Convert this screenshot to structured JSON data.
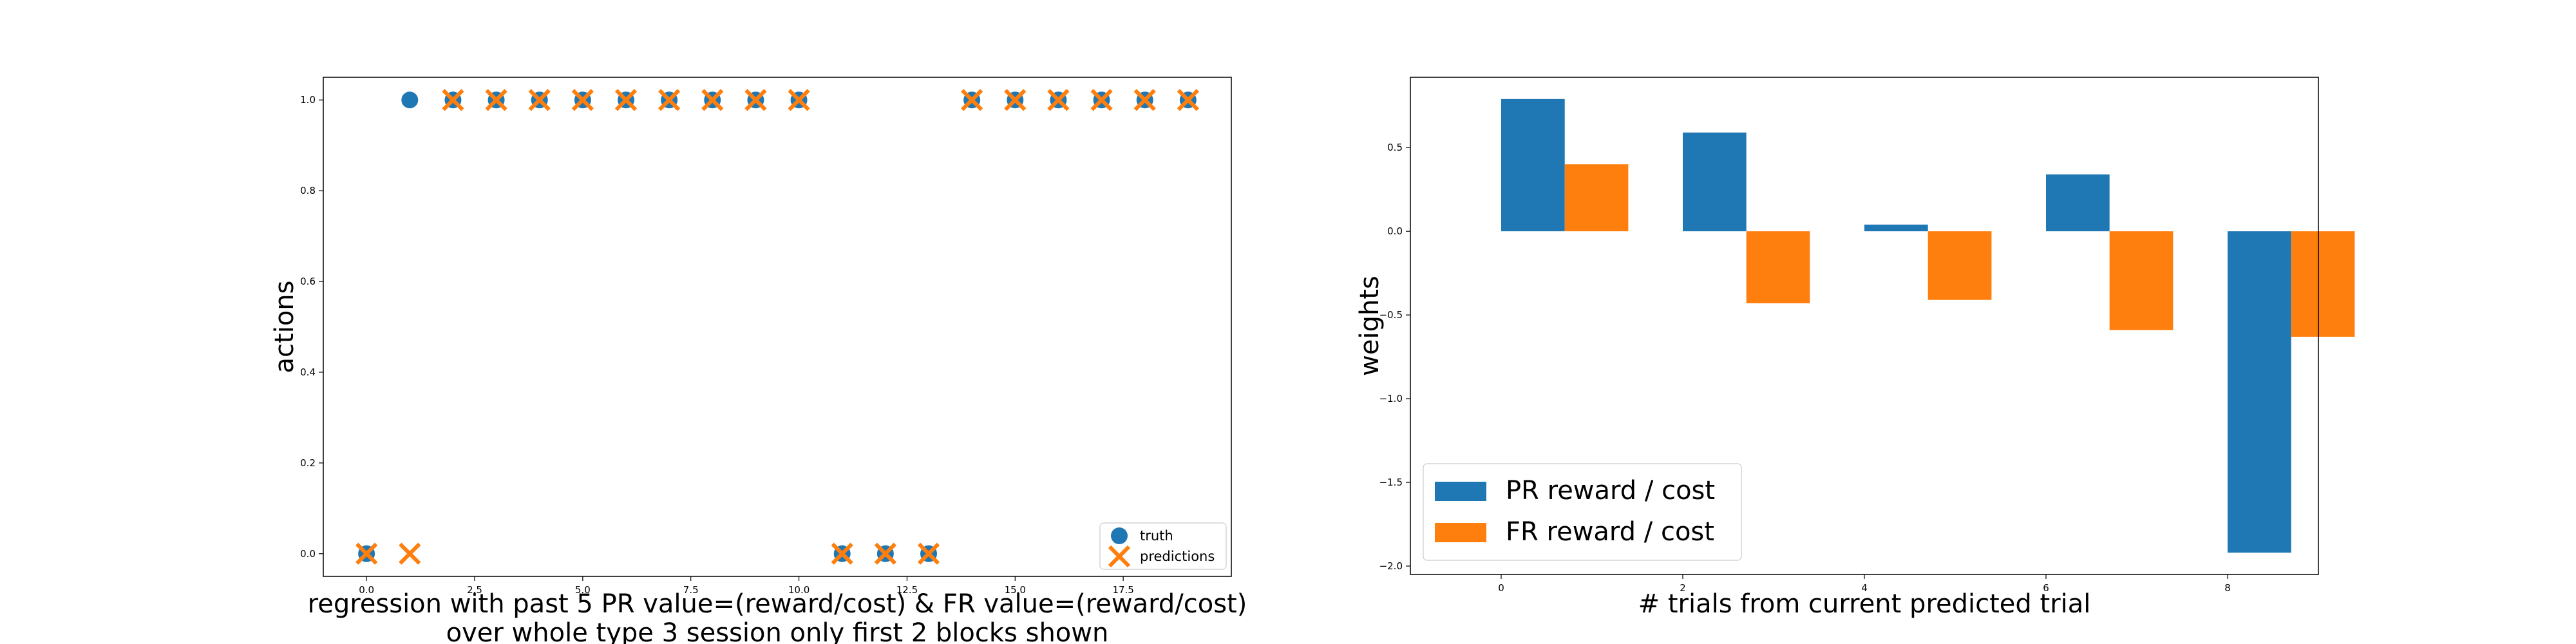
{
  "colors": {
    "blue": "#1f77b4",
    "orange": "#ff7f0e",
    "axis": "#000000",
    "background": "#ffffff"
  },
  "chart_data": [
    {
      "type": "scatter",
      "title": "",
      "xlabel": "regression with past 5 PR value=(reward/cost) & FR value=(reward/cost)",
      "xlabel_line2": "over whole type 3 session only first 2 blocks shown",
      "ylabel": "actions",
      "xlim": [
        -1.0,
        20.0
      ],
      "ylim": [
        -0.05,
        1.05
      ],
      "xticks": [
        0.0,
        2.5,
        5.0,
        7.5,
        10.0,
        12.5,
        15.0,
        17.5
      ],
      "xtick_labels": [
        "0.0",
        "2.5",
        "5.0",
        "7.5",
        "10.0",
        "12.5",
        "15.0",
        "17.5"
      ],
      "yticks": [
        0.0,
        0.2,
        0.4,
        0.6,
        0.8,
        1.0
      ],
      "ytick_labels": [
        "0.0",
        "0.2",
        "0.4",
        "0.6",
        "0.8",
        "1.0"
      ],
      "legend_position": "lower-right",
      "series": [
        {
          "name": "truth",
          "marker": "circle",
          "color": "#1f77b4",
          "x": [
            0,
            1,
            2,
            3,
            4,
            5,
            6,
            7,
            8,
            9,
            10,
            11,
            12,
            13,
            14,
            15,
            16,
            17,
            18,
            19
          ],
          "y": [
            0,
            1,
            1,
            1,
            1,
            1,
            1,
            1,
            1,
            1,
            1,
            0,
            0,
            0,
            1,
            1,
            1,
            1,
            1,
            1
          ]
        },
        {
          "name": "predictions",
          "marker": "x",
          "color": "#ff7f0e",
          "x": [
            0,
            1,
            2,
            3,
            4,
            5,
            6,
            7,
            8,
            9,
            10,
            11,
            12,
            13,
            14,
            15,
            16,
            17,
            18,
            19
          ],
          "y": [
            0,
            0,
            1,
            1,
            1,
            1,
            1,
            1,
            1,
            1,
            1,
            0,
            0,
            0,
            1,
            1,
            1,
            1,
            1,
            1
          ]
        }
      ]
    },
    {
      "type": "bar",
      "title": "",
      "xlabel": "# trials from current predicted trial",
      "ylabel": "weights",
      "xlim": [
        -1.0,
        9.0
      ],
      "ylim": [
        -2.05,
        0.92
      ],
      "xticks": [
        0,
        2,
        4,
        6,
        8
      ],
      "xtick_labels": [
        "0",
        "2",
        "4",
        "6",
        "8"
      ],
      "yticks": [
        -2.0,
        -1.5,
        -1.0,
        -0.5,
        0.0,
        0.5
      ],
      "ytick_labels": [
        "−2.0",
        "−1.5",
        "−1.0",
        "−0.5",
        "0.0",
        "0.5"
      ],
      "legend_position": "lower-left",
      "bar_width": 1.0,
      "categories": [
        0,
        2,
        4,
        6,
        8
      ],
      "series": [
        {
          "name": "PR reward / cost",
          "color": "#1f77b4",
          "values": [
            0.79,
            0.59,
            0.04,
            0.34,
            -1.92
          ]
        },
        {
          "name": "FR reward / cost",
          "color": "#ff7f0e",
          "values": [
            0.4,
            -0.43,
            -0.41,
            -0.59,
            -0.63
          ]
        }
      ]
    }
  ]
}
